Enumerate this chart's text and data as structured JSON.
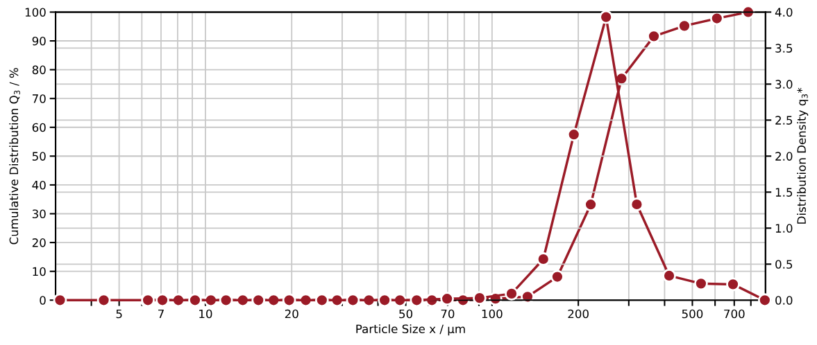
{
  "chart_data": {
    "type": "line",
    "xlabel": "Particle Size x / µm",
    "ylabel": "Cumulative Distribution Q$_{3}$ / %",
    "y2label": "Distribution Density q$_{3}$*",
    "log": "x",
    "grid": true,
    "marker": "circle",
    "line_style": "solid",
    "xlim": [
      3,
      900
    ],
    "xticks": [
      {
        "value": 4,
        "label": null
      },
      5,
      {
        "value": 6,
        "label": null
      },
      7,
      {
        "value": 8,
        "label": null
      },
      {
        "value": 9,
        "label": null
      },
      10,
      20,
      {
        "value": 30,
        "label": null
      },
      {
        "value": 40,
        "label": null
      },
      50,
      {
        "value": 60,
        "label": null
      },
      70,
      {
        "value": 80,
        "label": null
      },
      {
        "value": 90,
        "label": null
      },
      100,
      200,
      {
        "value": 300,
        "label": null
      },
      {
        "value": 400,
        "label": null
      },
      500,
      {
        "value": 600,
        "label": null
      },
      700,
      {
        "value": 800,
        "label": null
      }
    ],
    "ylim": [
      0,
      100
    ],
    "yticks": [
      0,
      10,
      20,
      30,
      40,
      50,
      60,
      70,
      80,
      90,
      100
    ],
    "y2lim": [
      0,
      4
    ],
    "y2ticks": [
      {
        "value": 0,
        "label": "0.0"
      },
      0.5,
      {
        "value": 1,
        "label": "1.0"
      },
      1.5,
      {
        "value": 2,
        "label": "2.0"
      },
      2.5,
      {
        "value": 3,
        "label": "3.0"
      },
      3.5,
      {
        "value": 4,
        "label": "4.0"
      }
    ],
    "series": [
      {
        "color": "#9b1b27",
        "x": [
          6.23,
          8.05,
          10.45,
          13.5,
          17.3,
          22.4,
          28.8,
          37.2,
          47.7,
          61.7,
          79.2,
          102.8,
          133,
          169,
          221,
          283,
          367,
          469,
          609,
          783
        ],
        "values": [
          0,
          0,
          0,
          0,
          0,
          0,
          0,
          0,
          0,
          0,
          0,
          0.5,
          1.2,
          8.1,
          33.2,
          76.9,
          91.6,
          95.2,
          97.8,
          100
        ]
      },
      {
        "color": "#9b1b27",
        "axis": "y2",
        "x": [
          3.11,
          4.42,
          6.3,
          7.08,
          9.2,
          11.8,
          15.3,
          19.6,
          25.5,
          32.7,
          42.2,
          54.6,
          69.7,
          90.5,
          117,
          151,
          193,
          250,
          320,
          415,
          536,
          693,
          895
        ],
        "values": [
          0,
          0,
          0,
          0,
          0,
          0,
          0,
          0,
          0,
          0,
          0,
          0,
          0.02,
          0.03,
          0.09,
          0.57,
          2.3,
          3.93,
          1.33,
          0.34,
          0.23,
          0.22,
          0
        ]
      }
    ]
  }
}
